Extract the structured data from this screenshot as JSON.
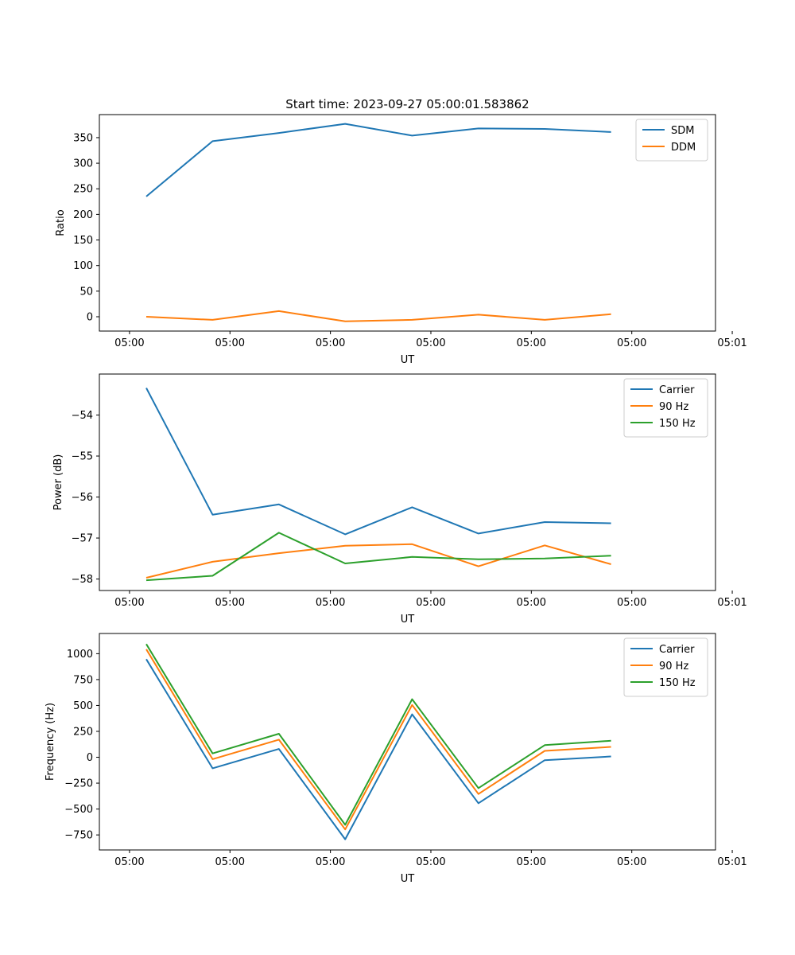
{
  "colors": {
    "c0": "#1f77b4",
    "c1": "#ff7f0e",
    "c2": "#2ca02c"
  },
  "chart_data": [
    {
      "type": "line",
      "title": "Start time: 2023-09-27 05:00:01.583862",
      "xlabel": "UT",
      "ylabel": "Ratio",
      "xlim": [
        -0.45,
        8.75
      ],
      "ylim": [
        -28,
        395
      ],
      "x": [
        0.25,
        1.24,
        2.23,
        3.22,
        4.22,
        5.21,
        6.2,
        7.19
      ],
      "xticks": [
        0,
        1.5,
        3,
        4.5,
        6,
        7.5,
        9
      ],
      "xtick_labels": [
        "05:00",
        "05:00",
        "05:00",
        "05:00",
        "05:00",
        "05:00",
        "05:01"
      ],
      "yticks": [
        0,
        50,
        100,
        150,
        200,
        250,
        300,
        350
      ],
      "ytick_labels": [
        "0",
        "50",
        "100",
        "150",
        "200",
        "250",
        "300",
        "350"
      ],
      "legend_position": "top-right",
      "series": [
        {
          "name": "SDM",
          "color": "#1f77b4",
          "values": [
            235,
            343,
            359,
            377,
            354,
            368,
            367,
            361
          ]
        },
        {
          "name": "DDM",
          "color": "#ff7f0e",
          "values": [
            0,
            -6,
            11,
            -9,
            -6,
            4,
            -6,
            5
          ]
        }
      ]
    },
    {
      "type": "line",
      "title": "",
      "xlabel": "UT",
      "ylabel": "Power (dB)",
      "xlim": [
        -0.45,
        8.75
      ],
      "ylim": [
        -58.28,
        -53.0
      ],
      "x": [
        0.25,
        1.24,
        2.23,
        3.22,
        4.22,
        5.21,
        6.2,
        7.19
      ],
      "xticks": [
        0,
        1.5,
        3,
        4.5,
        6,
        7.5,
        9
      ],
      "xtick_labels": [
        "05:00",
        "05:00",
        "05:00",
        "05:00",
        "05:00",
        "05:00",
        "05:01"
      ],
      "yticks": [
        -58,
        -57,
        -56,
        -55,
        -54
      ],
      "ytick_labels": [
        "−58",
        "−57",
        "−56",
        "−55",
        "−54"
      ],
      "legend_position": "top-right",
      "series": [
        {
          "name": "Carrier",
          "color": "#1f77b4",
          "values": [
            -53.34,
            -56.43,
            -56.18,
            -56.91,
            -56.25,
            -56.89,
            -56.61,
            -56.64
          ]
        },
        {
          "name": "90 Hz",
          "color": "#ff7f0e",
          "values": [
            -57.97,
            -57.58,
            -57.37,
            -57.19,
            -57.15,
            -57.69,
            -57.18,
            -57.64
          ]
        },
        {
          "name": "150 Hz",
          "color": "#2ca02c",
          "values": [
            -58.03,
            -57.92,
            -56.87,
            -57.62,
            -57.46,
            -57.52,
            -57.5,
            -57.43
          ]
        }
      ]
    },
    {
      "type": "line",
      "title": "",
      "xlabel": "UT",
      "ylabel": "Frequency (Hz)",
      "xlim": [
        -0.45,
        8.75
      ],
      "ylim": [
        -895,
        1195
      ],
      "x": [
        0.25,
        1.24,
        2.23,
        3.22,
        4.22,
        5.21,
        6.2,
        7.19
      ],
      "xticks": [
        0,
        1.5,
        3,
        4.5,
        6,
        7.5,
        9
      ],
      "xtick_labels": [
        "05:00",
        "05:00",
        "05:00",
        "05:00",
        "05:00",
        "05:00",
        "05:01"
      ],
      "yticks": [
        -750,
        -500,
        -250,
        0,
        250,
        500,
        750,
        1000
      ],
      "ytick_labels": [
        "−750",
        "−500",
        "−250",
        "0",
        "250",
        "500",
        "750",
        "1000"
      ],
      "legend_position": "top-right",
      "series": [
        {
          "name": "Carrier",
          "color": "#1f77b4",
          "values": [
            947,
            -107,
            80,
            -792,
            414,
            -444,
            -28,
            8
          ]
        },
        {
          "name": "90 Hz",
          "color": "#ff7f0e",
          "values": [
            1043,
            -18,
            170,
            -697,
            505,
            -355,
            62,
            100
          ]
        },
        {
          "name": "150 Hz",
          "color": "#2ca02c",
          "values": [
            1093,
            37,
            227,
            -652,
            560,
            -298,
            117,
            159
          ]
        }
      ]
    }
  ]
}
